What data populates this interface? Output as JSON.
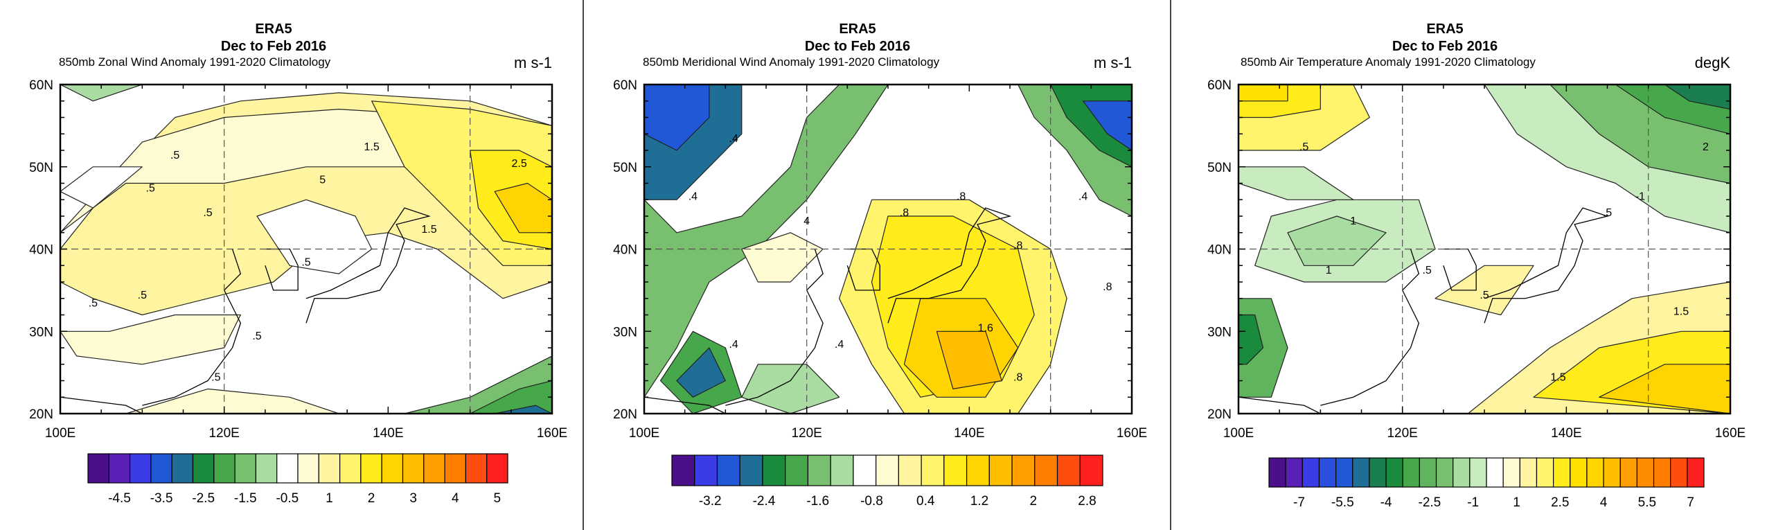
{
  "figures": [
    {
      "title_lines": [
        "ERA5",
        "Dec to Feb 2016"
      ],
      "left_label": "850mb Zonal Wind Anomaly  1991-2020 Climatology",
      "units": "m s-1"
    },
    {
      "title_lines": [
        "ERA5",
        "Dec to Feb 2016"
      ],
      "left_label": "850mb Meridional Wind Anomaly  1991-2020 Climatology",
      "units": "m s-1"
    },
    {
      "title_lines": [
        "ERA5",
        "Dec to Feb 2016"
      ],
      "left_label": "850mb Air Temperature Anomaly  1991-2020 Climatology",
      "units": "degK"
    }
  ],
  "chart_data": [
    {
      "type": "heatmap",
      "title": "ERA5 Dec to Feb 2016",
      "subtitle": "850mb Zonal Wind Anomaly  1991-2020 Climatology",
      "units": "m s-1",
      "x_ticks": [
        "100E",
        "120E",
        "140E",
        "160E"
      ],
      "x_tick_values": [
        100,
        120,
        140,
        160
      ],
      "y_ticks": [
        "20N",
        "30N",
        "40N",
        "50N",
        "60N"
      ],
      "y_tick_values": [
        20,
        30,
        40,
        50,
        60
      ],
      "xlim": [
        100,
        160
      ],
      "ylim": [
        20,
        60
      ],
      "colorbar_labels": [
        "-4.5",
        "-3.5",
        "-2.5",
        "-1.5",
        "-0.5",
        "1",
        "2",
        "3",
        "4",
        "5"
      ],
      "colorbar_colors": [
        "#4b0f8c",
        "#5a1fb5",
        "#3c3ce6",
        "#2158d8",
        "#1f6e96",
        "#1a8a3c",
        "#46a84a",
        "#78c070",
        "#a8dca0",
        "#ffffff",
        "#fffbd2",
        "#fff5a0",
        "#fff46b",
        "#ffec1a",
        "#ffd400",
        "#ffbe00",
        "#ffa000",
        "#ff7d00",
        "#ff4d10",
        "#ff2020"
      ],
      "contour_labels": [
        ".5",
        ".5",
        ".5",
        ".5",
        "1.5",
        "2.5",
        ".5",
        "1.5",
        ".5",
        "5",
        ".5",
        ".5"
      ]
    },
    {
      "type": "heatmap",
      "title": "ERA5 Dec to Feb 2016",
      "subtitle": "850mb Meridional Wind Anomaly  1991-2020 Climatology",
      "units": "m s-1",
      "x_ticks": [
        "100E",
        "120E",
        "140E",
        "160E"
      ],
      "x_tick_values": [
        100,
        120,
        140,
        160
      ],
      "y_ticks": [
        "20N",
        "30N",
        "40N",
        "50N",
        "60N"
      ],
      "y_tick_values": [
        20,
        30,
        40,
        50,
        60
      ],
      "xlim": [
        100,
        160
      ],
      "ylim": [
        20,
        60
      ],
      "colorbar_labels": [
        "-3.2",
        "-2.4",
        "-1.6",
        "-0.8",
        "0.4",
        "1.2",
        "2",
        "2.8"
      ],
      "colorbar_colors": [
        "#4b0f8c",
        "#3c3ce6",
        "#2158d8",
        "#1f6e96",
        "#1a8a3c",
        "#46a84a",
        "#78c070",
        "#a8dca0",
        "#ffffff",
        "#fffbd2",
        "#fff5a0",
        "#fff46b",
        "#ffec1a",
        "#ffd400",
        "#ffbe00",
        "#ffa000",
        "#ff7d00",
        "#ff4d10",
        "#ff2020"
      ],
      "contour_labels": [
        ".4",
        ".4",
        "4",
        ".8",
        ".8",
        ".8",
        "1.6",
        ".8",
        ".4",
        ".4",
        ".8",
        ".4"
      ]
    },
    {
      "type": "heatmap",
      "title": "ERA5 Dec to Feb 2016",
      "subtitle": "850mb Air Temperature Anomaly  1991-2020 Climatology",
      "units": "degK",
      "x_ticks": [
        "100E",
        "120E",
        "140E",
        "160E"
      ],
      "x_tick_values": [
        100,
        120,
        140,
        160
      ],
      "y_ticks": [
        "20N",
        "30N",
        "40N",
        "50N",
        "60N"
      ],
      "y_tick_values": [
        20,
        30,
        40,
        50,
        60
      ],
      "xlim": [
        100,
        160
      ],
      "ylim": [
        20,
        60
      ],
      "colorbar_labels": [
        "-7",
        "-5.5",
        "-4",
        "-2.5",
        "-1",
        "1",
        "2.5",
        "4",
        "5.5",
        "7"
      ],
      "colorbar_colors": [
        "#4b0f8c",
        "#5a1fb5",
        "#3c3ce6",
        "#2c4fe0",
        "#2158d8",
        "#1f6e96",
        "#1a7e50",
        "#1a8a3c",
        "#46a84a",
        "#60b45e",
        "#78c070",
        "#a8dca0",
        "#c8ecc0",
        "#ffffff",
        "#fffbd2",
        "#fff5a0",
        "#fff46b",
        "#ffec1a",
        "#ffe000",
        "#ffd400",
        "#ffbe00",
        "#ffa000",
        "#ff8c00",
        "#ff7d00",
        "#ff4d10",
        "#ff2020"
      ],
      "contour_labels": [
        ".5",
        "1",
        "1",
        ".5",
        "2",
        "-1",
        ".5",
        ".5",
        "1.5",
        "1.5"
      ]
    }
  ]
}
